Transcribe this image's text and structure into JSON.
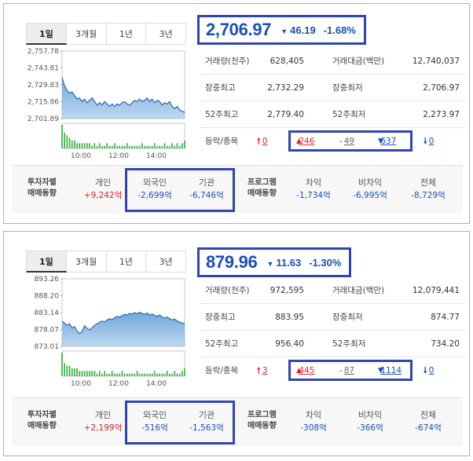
{
  "panels": [
    {
      "tabs": [
        "1일",
        "3개월",
        "1년",
        "3년"
      ],
      "active_tab": 0,
      "quote": {
        "price": "2,706.97",
        "change_arrow": "▼",
        "change": "46.19",
        "percent": "-1.68%",
        "color": "#1a4fb8"
      },
      "stats": [
        {
          "k1": "거래량(천주)",
          "v1": "628,405",
          "k2": "거래대금(백만)",
          "v2": "12,740,037"
        },
        {
          "k1": "장중최고",
          "v1": "2,732.29",
          "k2": "장중최저",
          "v2": "2,706.97"
        },
        {
          "k1": "52주최고",
          "v1": "2,779.40",
          "k2": "52주최저",
          "v2": "2,273.97"
        }
      ],
      "advance": {
        "label": "등락/종목",
        "limit_up": "0",
        "up": "246",
        "flat": "49",
        "down": "637",
        "limit_down": "0"
      },
      "investor": {
        "label1": "투자자별",
        "label2": "매매동향",
        "cols": [
          {
            "h": "개인",
            "v": "+9,242억",
            "sign": "pos"
          },
          {
            "h": "외국인",
            "v": "-2,699억",
            "sign": "neg"
          },
          {
            "h": "기관",
            "v": "-6,746억",
            "sign": "neg"
          }
        ]
      },
      "program": {
        "label1": "프로그램",
        "label2": "매매동향",
        "cols": [
          {
            "h": "차익",
            "v": "-1,734억",
            "sign": "neg"
          },
          {
            "h": "비차익",
            "v": "-6,995억",
            "sign": "neg"
          },
          {
            "h": "전체",
            "v": "-8,729억",
            "sign": "neg"
          }
        ]
      },
      "chart_data": {
        "type": "area",
        "y_ticks": [
          "2,757.78",
          "2,743.81",
          "2,729.83",
          "2,715.86",
          "2,701.89"
        ],
        "ylim": [
          2701.89,
          2757.78
        ],
        "x_ticks": [
          "10:00",
          "12:00",
          "14:00"
        ],
        "x_tick_positions_minutes": [
          60,
          180,
          300
        ],
        "x_range_minutes": [
          0,
          390
        ],
        "prices": [
          2736,
          2729,
          2725,
          2723,
          2724,
          2721,
          2718,
          2719,
          2716,
          2718,
          2715,
          2717,
          2719,
          2716,
          2713,
          2715,
          2713,
          2716,
          2714,
          2712,
          2714,
          2712,
          2714,
          2713,
          2715,
          2716,
          2714,
          2713,
          2715,
          2717,
          2716,
          2718,
          2716,
          2717,
          2719,
          2716,
          2718,
          2715,
          2717,
          2716,
          2713,
          2715,
          2714,
          2716,
          2712,
          2710,
          2712,
          2709,
          2708,
          2707
        ],
        "volumes": [
          9,
          6,
          5,
          4,
          3,
          3,
          2,
          2,
          2,
          2,
          2,
          2,
          1,
          2,
          1,
          2,
          1,
          1,
          2,
          1,
          1,
          2,
          1,
          1,
          1,
          1,
          2,
          1,
          1,
          1,
          1,
          1,
          2,
          1,
          1,
          1,
          1,
          2,
          1,
          1,
          1,
          2,
          1,
          1,
          2,
          1,
          2,
          1,
          2,
          3
        ],
        "area_color": "#6fa8dc",
        "line_color": "#2a6aa6",
        "volume_color": "#3cb043"
      }
    },
    {
      "tabs": [
        "1일",
        "3개월",
        "1년",
        "3년"
      ],
      "active_tab": 0,
      "quote": {
        "price": "879.96",
        "change_arrow": "▼",
        "change": "11.63",
        "percent": "-1.30%",
        "color": "#1a4fb8"
      },
      "stats": [
        {
          "k1": "거래량(천주)",
          "v1": "972,595",
          "k2": "거래대금(백만)",
          "v2": "12,079,441"
        },
        {
          "k1": "장중최고",
          "v1": "883.95",
          "k2": "장중최저",
          "v2": "874.77"
        },
        {
          "k1": "52주최고",
          "v1": "956.40",
          "k2": "52주최저",
          "v2": "734.20"
        }
      ],
      "advance": {
        "label": "등락/종목",
        "limit_up": "3",
        "up": "445",
        "flat": "87",
        "down": "1114",
        "limit_down": "0"
      },
      "investor": {
        "label1": "투자자별",
        "label2": "매매동향",
        "cols": [
          {
            "h": "개인",
            "v": "+2,199억",
            "sign": "pos"
          },
          {
            "h": "외국인",
            "v": "-516억",
            "sign": "neg"
          },
          {
            "h": "기관",
            "v": "-1,563억",
            "sign": "neg"
          }
        ]
      },
      "program": {
        "label1": "프로그램",
        "label2": "매매동향",
        "cols": [
          {
            "h": "차익",
            "v": "-308억",
            "sign": "neg"
          },
          {
            "h": "비차익",
            "v": "-366억",
            "sign": "neg"
          },
          {
            "h": "전체",
            "v": "-674억",
            "sign": "neg"
          }
        ]
      },
      "chart_data": {
        "type": "area",
        "y_ticks": [
          "893.26",
          "888.20",
          "883.14",
          "878.07",
          "873.01"
        ],
        "ylim": [
          873.01,
          893.26
        ],
        "x_ticks": [
          "10:00",
          "12:00",
          "14:00"
        ],
        "x_tick_positions_minutes": [
          60,
          180,
          300
        ],
        "x_range_minutes": [
          0,
          390
        ],
        "prices": [
          880.5,
          880.0,
          879.3,
          879.8,
          878.5,
          878.9,
          877.6,
          876.8,
          877.5,
          879.2,
          878.4,
          877.9,
          878.6,
          879.3,
          879.8,
          880.2,
          880.6,
          880.3,
          880.9,
          881.3,
          881.0,
          881.6,
          882.0,
          881.8,
          882.2,
          882.6,
          882.4,
          882.9,
          882.7,
          883.1,
          882.8,
          883.2,
          882.9,
          882.6,
          883.0,
          882.4,
          882.7,
          882.3,
          882.0,
          882.4,
          881.8,
          881.5,
          881.8,
          881.3,
          880.9,
          881.2,
          880.6,
          880.3,
          880.0,
          879.96
        ],
        "volumes": [
          9,
          5,
          4,
          4,
          3,
          3,
          3,
          2,
          2,
          2,
          2,
          2,
          2,
          2,
          1,
          2,
          1,
          2,
          1,
          1,
          2,
          1,
          1,
          1,
          2,
          1,
          1,
          1,
          1,
          1,
          2,
          1,
          1,
          1,
          1,
          1,
          1,
          2,
          1,
          1,
          1,
          1,
          2,
          1,
          1,
          2,
          1,
          1,
          2,
          3
        ],
        "area_color": "#6fa8dc",
        "line_color": "#2a6aa6",
        "volume_color": "#3cb043"
      }
    }
  ]
}
